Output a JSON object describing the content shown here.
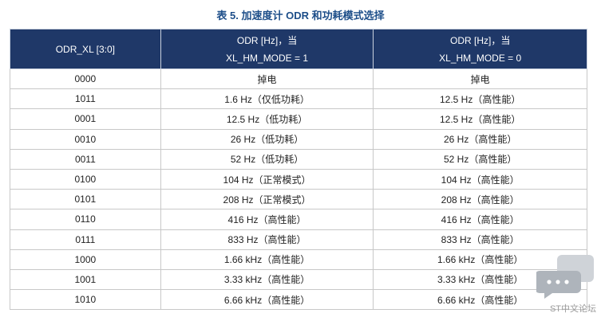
{
  "title": "表 5. 加速度计 ODR 和功耗模式选择",
  "table": {
    "header": [
      [
        "ODR_XL [3:0]"
      ],
      [
        "ODR [Hz]，当",
        "XL_HM_MODE = 1"
      ],
      [
        "ODR [Hz]，当",
        "XL_HM_MODE = 0"
      ]
    ],
    "rows": [
      [
        "0000",
        "掉电",
        "掉电"
      ],
      [
        "1011",
        "1.6 Hz（仅低功耗）",
        "12.5 Hz（高性能）"
      ],
      [
        "0001",
        "12.5 Hz（低功耗）",
        "12.5 Hz（高性能）"
      ],
      [
        "0010",
        "26 Hz（低功耗）",
        "26 Hz（高性能）"
      ],
      [
        "0011",
        "52 Hz（低功耗）",
        "52 Hz（高性能）"
      ],
      [
        "0100",
        "104 Hz（正常模式）",
        "104 Hz（高性能）"
      ],
      [
        "0101",
        "208 Hz（正常模式）",
        "208 Hz（高性能）"
      ],
      [
        "0110",
        "416 Hz（高性能）",
        "416 Hz（高性能）"
      ],
      [
        "0111",
        "833 Hz（高性能）",
        "833 Hz（高性能）"
      ],
      [
        "1000",
        "1.66 kHz（高性能）",
        "1.66 kHz（高性能）"
      ],
      [
        "1001",
        "3.33 kHz（高性能）",
        "3.33 kHz（高性能）"
      ],
      [
        "1010",
        "6.66 kHz（高性能）",
        "6.66 kHz（高性能）"
      ]
    ]
  },
  "watermark": "ST中文论坛"
}
